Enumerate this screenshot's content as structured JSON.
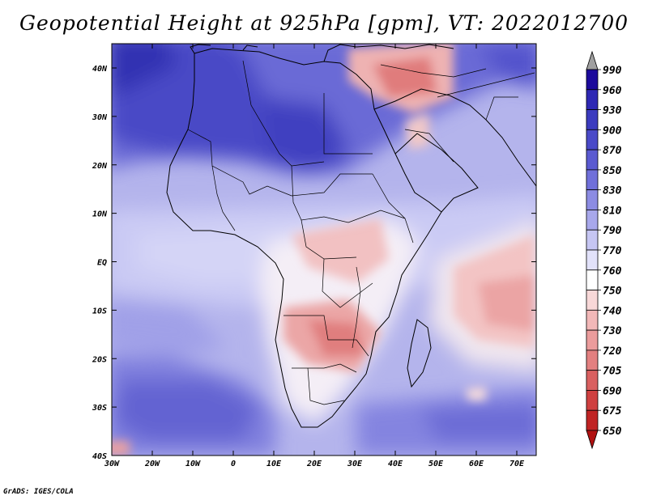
{
  "title": "Geopotential Height at 925hPa [gpm], VT: 2022012700",
  "credit": "GrADS: IGES/COLA",
  "axes": {
    "lon_labels": [
      "30W",
      "20W",
      "10W",
      "0",
      "10E",
      "20E",
      "30E",
      "40E",
      "50E",
      "60E",
      "70E"
    ],
    "lat_labels": [
      "40N",
      "30N",
      "20N",
      "10N",
      "EQ",
      "10S",
      "20S",
      "30S",
      "40S"
    ]
  },
  "colorbar": {
    "levels": [
      "990",
      "960",
      "930",
      "900",
      "870",
      "850",
      "830",
      "810",
      "790",
      "770",
      "760",
      "750",
      "740",
      "730",
      "720",
      "705",
      "690",
      "675",
      "650"
    ],
    "colors": [
      "#a0a0a0",
      "#1c0a9c",
      "#2e28b4",
      "#3b3bbf",
      "#4a4ac8",
      "#5a5ad1",
      "#7070da",
      "#8c8ce3",
      "#a8a8eb",
      "#c6c6f3",
      "#e2e2fa",
      "#ffffff",
      "#f8d8d8",
      "#f2b8b8",
      "#eb9c9c",
      "#e38080",
      "#d96060",
      "#cf4040",
      "#c02424",
      "#b01010"
    ],
    "low_arrow_color": "#b01010",
    "high_arrow_color": "#a0a0a0"
  }
}
